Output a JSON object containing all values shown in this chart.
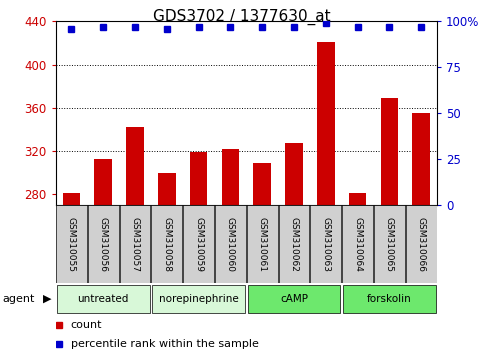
{
  "title": "GDS3702 / 1377630_at",
  "samples": [
    "GSM310055",
    "GSM310056",
    "GSM310057",
    "GSM310058",
    "GSM310059",
    "GSM310060",
    "GSM310061",
    "GSM310062",
    "GSM310063",
    "GSM310064",
    "GSM310065",
    "GSM310066"
  ],
  "counts": [
    281,
    313,
    342,
    300,
    319,
    322,
    309,
    328,
    421,
    281,
    369,
    355
  ],
  "percentiles": [
    96,
    97,
    97,
    96,
    97,
    97,
    97,
    97,
    99,
    97,
    97,
    97
  ],
  "groups": [
    {
      "label": "untreated",
      "start": 0,
      "end": 3,
      "color": "#c8f5c8"
    },
    {
      "label": "norepinephrine",
      "start": 3,
      "end": 6,
      "color": "#c8f5c8"
    },
    {
      "label": "cAMP",
      "start": 6,
      "end": 9,
      "color": "#90ee90"
    },
    {
      "label": "forskolin",
      "start": 9,
      "end": 12,
      "color": "#90ee90"
    }
  ],
  "ylim_left": [
    270,
    440
  ],
  "ylim_right": [
    0,
    100
  ],
  "yticks_left": [
    280,
    320,
    360,
    400,
    440
  ],
  "yticks_right": [
    0,
    25,
    50,
    75,
    100
  ],
  "bar_color": "#cc0000",
  "dot_color": "#0000cc",
  "background_sample": "#d0d0d0",
  "title_fontsize": 11,
  "axis_color_left": "#cc0000",
  "axis_color_right": "#0000cc"
}
